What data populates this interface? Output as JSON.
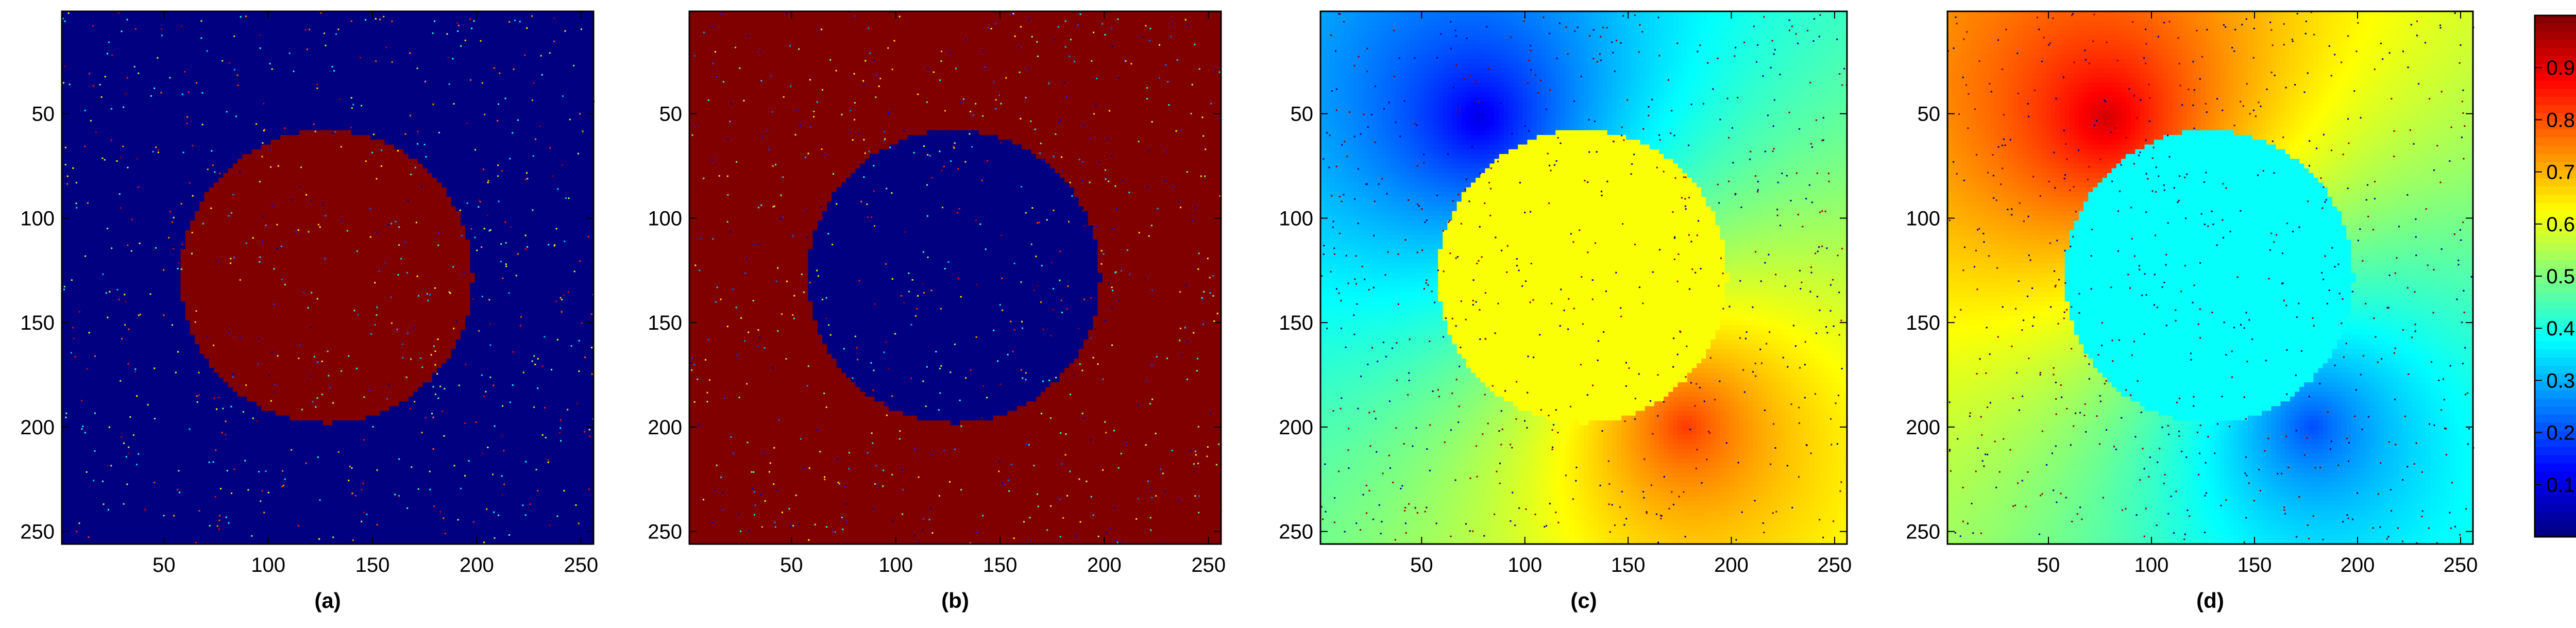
{
  "chart_data": [
    {
      "type": "heatmap",
      "caption": "(a)",
      "x_ticks": [
        50,
        100,
        150,
        200,
        250
      ],
      "y_ticks": [
        50,
        100,
        150,
        200,
        250
      ],
      "xlim": [
        1,
        256
      ],
      "ylim": [
        1,
        256
      ],
      "y_direction": "down",
      "field": "binary",
      "background_value": 0.0,
      "disk_value": 1.0,
      "disk": {
        "cx": 128,
        "cy": 128,
        "r": 70
      },
      "noise": "salt-and-pepper"
    },
    {
      "type": "heatmap",
      "caption": "(b)",
      "x_ticks": [
        50,
        100,
        150,
        200,
        250
      ],
      "y_ticks": [
        50,
        100,
        150,
        200,
        250
      ],
      "xlim": [
        1,
        256
      ],
      "ylim": [
        1,
        256
      ],
      "y_direction": "down",
      "field": "binary",
      "background_value": 1.0,
      "disk_value": 0.0,
      "disk": {
        "cx": 128,
        "cy": 128,
        "r": 70
      },
      "noise": "salt-and-pepper"
    },
    {
      "type": "heatmap",
      "caption": "(c)",
      "x_ticks": [
        50,
        100,
        150,
        200,
        250
      ],
      "y_ticks": [
        50,
        100,
        150,
        200,
        250
      ],
      "xlim": [
        1,
        256
      ],
      "ylim": [
        1,
        256
      ],
      "y_direction": "down",
      "field": "smooth",
      "low_center": [
        78,
        52
      ],
      "high_center": [
        178,
        200
      ],
      "value_range": [
        0.1,
        0.82
      ],
      "disk": {
        "cx": 128,
        "cy": 128,
        "r": 70,
        "value": 0.62
      },
      "noise": "salt-and-pepper"
    },
    {
      "type": "heatmap",
      "caption": "(d)",
      "x_ticks": [
        50,
        100,
        150,
        200,
        250
      ],
      "y_ticks": [
        50,
        100,
        150,
        200,
        250
      ],
      "xlim": [
        1,
        256
      ],
      "ylim": [
        1,
        256
      ],
      "y_direction": "down",
      "field": "smooth",
      "high_center": [
        78,
        52
      ],
      "low_center": [
        178,
        200
      ],
      "value_range": [
        0.2,
        0.92
      ],
      "disk": {
        "cx": 128,
        "cy": 128,
        "r": 70,
        "value": 0.38
      },
      "noise": "salt-and-pepper"
    }
  ],
  "colorbar": {
    "colormap": "jet",
    "range": [
      0,
      1
    ],
    "ticks": [
      0.1,
      0.2,
      0.3,
      0.4,
      0.5,
      0.6,
      0.7,
      0.8,
      0.9
    ]
  }
}
